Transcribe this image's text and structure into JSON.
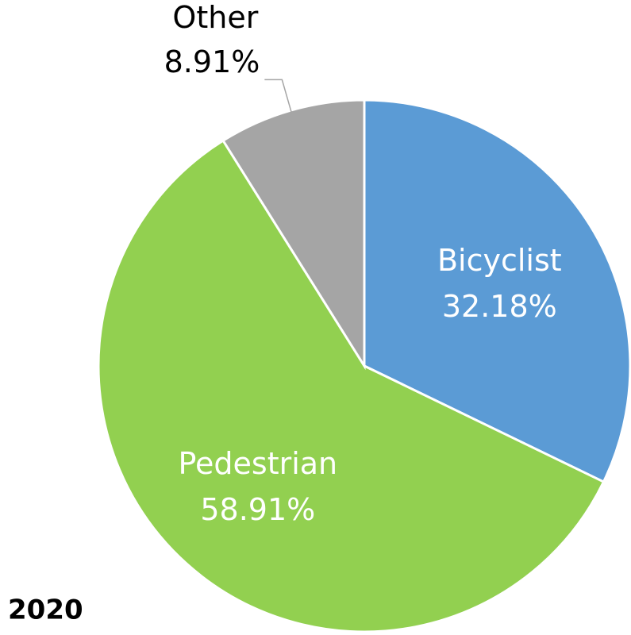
{
  "chart_data": {
    "type": "pie",
    "title": "2020",
    "categories": [
      "Bicyclist",
      "Pedestrian",
      "Other"
    ],
    "values": [
      32.18,
      58.91,
      8.91
    ],
    "value_labels": [
      "32.18%",
      "58.91%",
      "8.91%"
    ],
    "colors": [
      "#5b9bd5",
      "#92d050",
      "#a5a5a5"
    ]
  }
}
